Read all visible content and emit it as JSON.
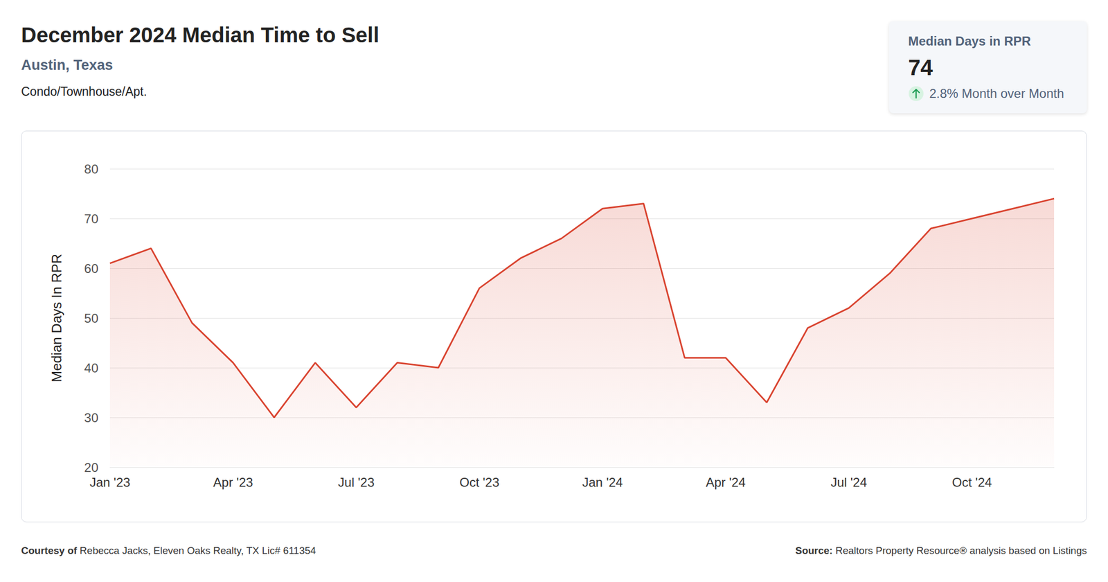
{
  "chart_data": {
    "type": "line",
    "title": "December 2024 Median Time to Sell",
    "subtitle": "Austin, Texas",
    "property_type": "Condo/Townhouse/Apt.",
    "y_label": "Median Days In RPR",
    "categories": [
      "Jan '23",
      null,
      null,
      "Apr '23",
      null,
      null,
      "Jul '23",
      null,
      null,
      "Oct '23",
      null,
      null,
      "Jan '24",
      null,
      null,
      "Apr '24",
      null,
      null,
      "Jul '24",
      null,
      null,
      "Oct '24",
      null,
      null
    ],
    "values": [
      61,
      64,
      49,
      41,
      30,
      41,
      32,
      41,
      40,
      56,
      62,
      66,
      72,
      73,
      42,
      42,
      33,
      48,
      52,
      59,
      68,
      70,
      72,
      74
    ],
    "color": "#d9432f",
    "ylim": [
      20,
      80
    ],
    "yticks": [
      20,
      30,
      40,
      50,
      60,
      70,
      80
    ],
    "grid": true,
    "summary": {
      "label": "Median Days in RPR",
      "value": 74,
      "change_label": "2.8% Month over Month"
    },
    "footer": {
      "courtesy_prefix": "Courtesy of",
      "courtesy": "Rebecca Jacks, Eleven Oaks Realty, TX Lic# 611354",
      "source_prefix": "Source:",
      "source": "Realtors Property Resource® analysis based on Listings"
    }
  }
}
